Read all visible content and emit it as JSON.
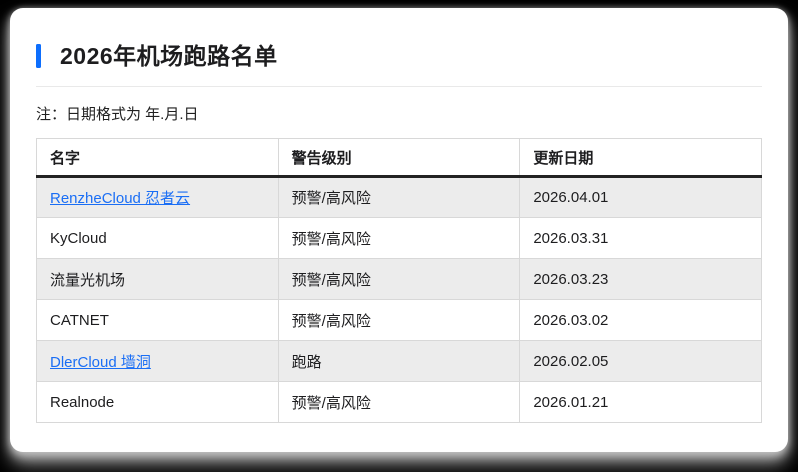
{
  "page": {
    "title": "2026年机场跑路名单",
    "note": "注：日期格式为 年.月.日"
  },
  "table": {
    "columns": [
      "名字",
      "警告级别",
      "更新日期"
    ],
    "rows": [
      {
        "name": "RenzheCloud 忍者云",
        "is_link": true,
        "level": "预警/高风险",
        "date": "2026.04.01"
      },
      {
        "name": "KyCloud",
        "is_link": false,
        "level": "预警/高风险",
        "date": "2026.03.31"
      },
      {
        "name": "流量光机场",
        "is_link": false,
        "level": "预警/高风险",
        "date": "2026.03.23"
      },
      {
        "name": "CATNET",
        "is_link": false,
        "level": "预警/高风险",
        "date": "2026.03.02"
      },
      {
        "name": "DlerCloud 墙洞",
        "is_link": true,
        "level": "跑路",
        "date": "2026.02.05"
      },
      {
        "name": "Realnode",
        "is_link": false,
        "level": "预警/高风险",
        "date": "2026.01.21"
      }
    ]
  },
  "colors": {
    "accent": "#0d6efd",
    "link": "#1a6ef5",
    "stripe": "#ececec",
    "table_border": "#d8d8d8",
    "header_rule": "#222222",
    "text": "#1d1d1f",
    "card_background": "#ffffff"
  }
}
